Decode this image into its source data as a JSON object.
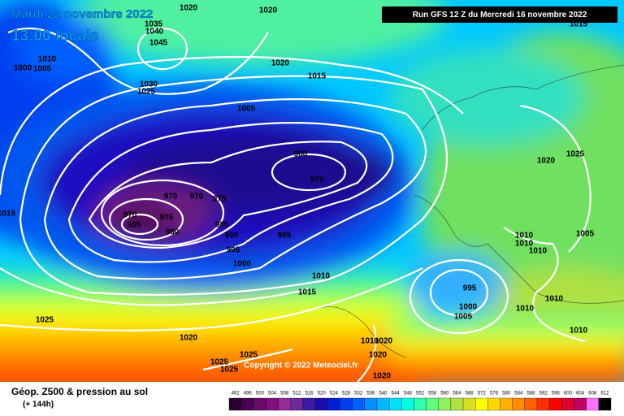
{
  "header": {
    "date": "Mardi 22 novembre 2022",
    "time": "13:00 locale",
    "run": "Run GFS 12 Z du Mercredi 16 novembre 2022"
  },
  "isobar_labels": [
    "1020",
    "1020",
    "1035",
    "1040",
    "1045",
    "1010",
    "1005",
    "1000",
    "1030",
    "1025",
    "1020",
    "1015",
    "1005",
    "980",
    "975",
    "970",
    "970",
    "975",
    "970",
    "965",
    "975",
    "980",
    "985",
    "990",
    "995",
    "1000",
    "985",
    "1010",
    "1015",
    "1015",
    "1025",
    "1020",
    "1025",
    "1025",
    "1025",
    "1010",
    "1020",
    "1020",
    "1020",
    "1025",
    "1020",
    "1010",
    "1010",
    "1010",
    "1005",
    "995",
    "1000",
    "1005",
    "1010",
    "1010",
    "1010",
    "1015"
  ],
  "copyright": "Copyright © 2022 Meteociel.fr",
  "legend": {
    "title": "Géop. Z500 & pression au sol",
    "lead": "(+ 144h)",
    "values": [
      492,
      496,
      500,
      504,
      508,
      512,
      516,
      520,
      524,
      528,
      532,
      536,
      540,
      544,
      548,
      552,
      556,
      560,
      564,
      568,
      572,
      576,
      580,
      584,
      588,
      592,
      596,
      600,
      604,
      608,
      612
    ],
    "colors": [
      "#2a0030",
      "#4a0050",
      "#6a0a6a",
      "#800f80",
      "#962a96",
      "#6a2a9a",
      "#3a1aa0",
      "#1a10b0",
      "#0020d0",
      "#0040f0",
      "#0060ff",
      "#0090ff",
      "#00b8ff",
      "#00e0ff",
      "#00ffe0",
      "#30ffb0",
      "#60ff80",
      "#90f060",
      "#b0e040",
      "#d8e020",
      "#ffff00",
      "#ffd800",
      "#ffb000",
      "#ff8c00",
      "#ff6000",
      "#ff3000",
      "#ff0000",
      "#e00030",
      "#c00060",
      "#ff70ff",
      "#000000"
    ]
  }
}
